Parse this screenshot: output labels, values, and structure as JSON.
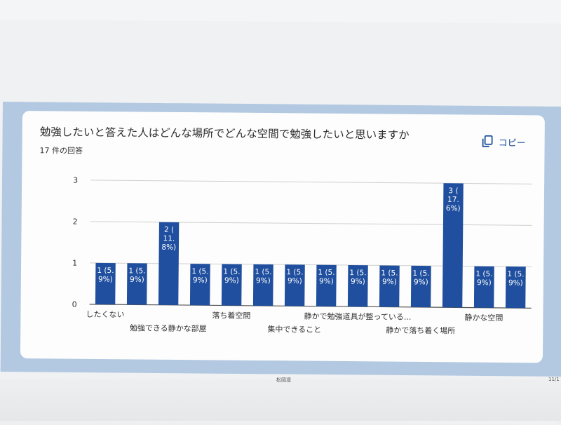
{
  "card": {
    "title": "勉強したいと答えた人はどんな場所でどんな空間で勉強したいと思いますか",
    "subtitle": "17 件の回答",
    "copy_label": "コピー"
  },
  "footer": {
    "author": "松岡凛",
    "page": "11/1"
  },
  "chart_data": {
    "type": "bar",
    "ylim": [
      0,
      3
    ],
    "yticks": [
      0,
      1,
      2,
      3
    ],
    "grid": true,
    "bar_color": "#1f4f9e",
    "values": [
      1,
      1,
      2,
      1,
      1,
      1,
      1,
      1,
      1,
      1,
      1,
      3,
      1,
      1
    ],
    "data_labels": [
      [
        "1 (5.",
        "9%)"
      ],
      [
        "1 (5.",
        "9%)"
      ],
      [
        "2 (",
        "11.",
        "8%)"
      ],
      [
        "1 (5.",
        "9%)"
      ],
      [
        "1 (5.",
        "9%)"
      ],
      [
        "1 (5.",
        "9%)"
      ],
      [
        "1 (5.",
        "9%)"
      ],
      [
        "1 (5.",
        "9%)"
      ],
      [
        "1 (5.",
        "9%)"
      ],
      [
        "1 (5.",
        "9%)"
      ],
      [
        "1 (5.",
        "9%)"
      ],
      [
        "3 (",
        "17.",
        "6%)"
      ],
      [
        "1 (5.",
        "9%)"
      ],
      [
        "1 (5.",
        "9%)"
      ]
    ],
    "x_tick_labels": [
      {
        "text": "したくない",
        "bar": 0,
        "row": 0
      },
      {
        "text": "勉強できる静かな部屋",
        "bar": 2,
        "row": 1
      },
      {
        "text": "落ち着空間",
        "bar": 4,
        "row": 0
      },
      {
        "text": "集中できること",
        "bar": 6,
        "row": 1
      },
      {
        "text": "静かで勉強道具が整っている...",
        "bar": 8,
        "row": 0
      },
      {
        "text": "静かで落ち着く場所",
        "bar": 10,
        "row": 1
      },
      {
        "text": "静かな空間",
        "bar": 12,
        "row": 0
      }
    ]
  }
}
